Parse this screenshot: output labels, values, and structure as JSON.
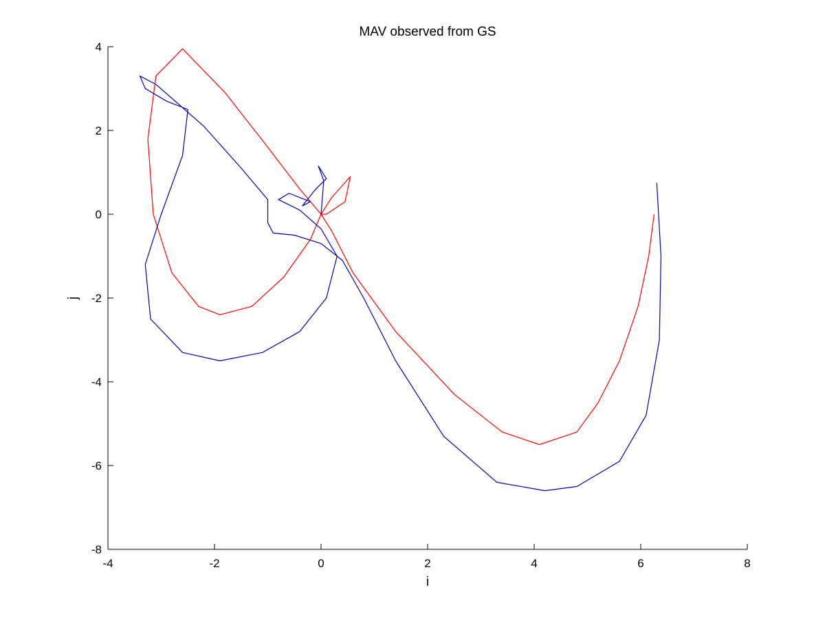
{
  "chart_data": {
    "type": "line",
    "title": "MAV observed from GS",
    "xlabel": "i",
    "ylabel": "j",
    "xlim": [
      -4,
      8
    ],
    "ylim": [
      -8,
      4
    ],
    "xticks": [
      -4,
      -2,
      0,
      2,
      4,
      6,
      8
    ],
    "yticks": [
      -8,
      -6,
      -4,
      -2,
      0,
      2,
      4
    ],
    "xtick_labels": [
      "-4",
      "-2",
      "0",
      "2",
      "4",
      "6",
      "8"
    ],
    "ytick_labels": [
      "-8",
      "-6",
      "-4",
      "-2",
      "0",
      "2",
      "4"
    ],
    "grid": false,
    "legend": "none",
    "series": [
      {
        "color": "#ff0000",
        "points": [
          [
            6.25,
            0.0
          ],
          [
            6.15,
            -1.0
          ],
          [
            5.95,
            -2.2
          ],
          [
            5.6,
            -3.5
          ],
          [
            5.2,
            -4.5
          ],
          [
            4.8,
            -5.2
          ],
          [
            4.1,
            -5.5
          ],
          [
            3.4,
            -5.2
          ],
          [
            2.5,
            -4.3
          ],
          [
            1.4,
            -2.8
          ],
          [
            0.6,
            -1.4
          ],
          [
            0.2,
            -0.4
          ],
          [
            0.0,
            0.0
          ],
          [
            -0.4,
            0.6
          ],
          [
            -1.0,
            1.6
          ],
          [
            -1.8,
            2.9
          ],
          [
            -2.6,
            3.95
          ],
          [
            -3.1,
            3.3
          ],
          [
            -3.25,
            1.8
          ],
          [
            -3.15,
            0.0
          ],
          [
            -2.8,
            -1.4
          ],
          [
            -2.3,
            -2.2
          ],
          [
            -1.9,
            -2.4
          ],
          [
            -1.3,
            -2.2
          ],
          [
            -0.7,
            -1.5
          ],
          [
            -0.2,
            -0.6
          ],
          [
            0.0,
            0.0
          ],
          [
            0.2,
            0.4
          ],
          [
            0.55,
            0.9
          ],
          [
            0.45,
            0.3
          ],
          [
            0.1,
            0.0
          ],
          [
            0.0,
            0.0
          ]
        ]
      },
      {
        "color": "#0000aa",
        "points": [
          [
            6.3,
            0.75
          ],
          [
            6.38,
            -1.0
          ],
          [
            6.35,
            -3.0
          ],
          [
            6.1,
            -4.8
          ],
          [
            5.6,
            -5.9
          ],
          [
            4.8,
            -6.5
          ],
          [
            4.2,
            -6.6
          ],
          [
            3.3,
            -6.4
          ],
          [
            2.3,
            -5.3
          ],
          [
            1.4,
            -3.5
          ],
          [
            0.8,
            -2.0
          ],
          [
            0.4,
            -1.1
          ],
          [
            0.0,
            -0.7
          ],
          [
            -0.5,
            -0.5
          ],
          [
            -0.9,
            -0.45
          ],
          [
            -1.0,
            -0.2
          ],
          [
            -1.0,
            0.35
          ],
          [
            -1.5,
            1.1
          ],
          [
            -2.2,
            2.1
          ],
          [
            -3.1,
            3.1
          ],
          [
            -3.4,
            3.3
          ],
          [
            -3.3,
            3.0
          ],
          [
            -2.9,
            2.7
          ],
          [
            -2.5,
            2.5
          ],
          [
            -2.6,
            1.4
          ],
          [
            -3.0,
            0.0
          ],
          [
            -3.3,
            -1.2
          ],
          [
            -3.2,
            -2.5
          ],
          [
            -2.6,
            -3.3
          ],
          [
            -1.9,
            -3.5
          ],
          [
            -1.1,
            -3.3
          ],
          [
            -0.4,
            -2.8
          ],
          [
            0.1,
            -2.0
          ],
          [
            0.3,
            -1.0
          ],
          [
            0.0,
            -0.35
          ],
          [
            -0.4,
            0.1
          ],
          [
            -0.8,
            0.35
          ],
          [
            -0.6,
            0.5
          ],
          [
            -0.2,
            0.3
          ],
          [
            -0.35,
            0.2
          ],
          [
            -0.1,
            0.6
          ],
          [
            0.1,
            0.85
          ],
          [
            -0.05,
            1.15
          ],
          [
            0.05,
            0.8
          ],
          [
            0.0,
            0.0
          ]
        ]
      }
    ]
  }
}
